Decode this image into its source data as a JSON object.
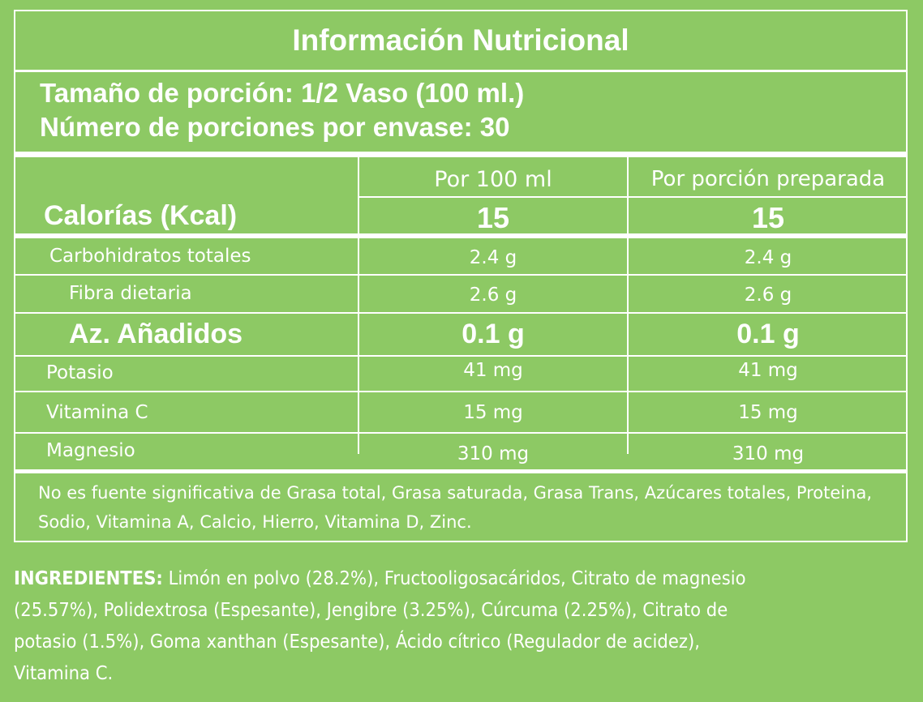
{
  "panel": {
    "title": "Información Nutricional",
    "serving_size": "Tamaño de porción: 1/2 Vaso (100 ml.)",
    "servings_per_container": "Número de porciones por envase: 30"
  },
  "table": {
    "col_headers": [
      "Por 100 ml",
      "Por porción preparada"
    ],
    "calories": {
      "label": "Calorías (Kcal)",
      "per_100ml": "15",
      "per_serving": "15"
    },
    "rows": [
      {
        "label": "Carbohidratos totales",
        "per_100ml": "2.4 g",
        "per_serving": "2.4 g"
      },
      {
        "label": "Fibra dietaria",
        "per_100ml": "2.6 g",
        "per_serving": "2.6 g"
      },
      {
        "label": "Az. Añadidos",
        "per_100ml": "0.1 g",
        "per_serving": "0.1 g"
      },
      {
        "label": "Potasio",
        "per_100ml": "41 mg",
        "per_serving": "41 mg"
      },
      {
        "label": "Vitamina C",
        "per_100ml": "15 mg",
        "per_serving": "15 mg"
      },
      {
        "label": "Magnesio",
        "per_100ml": "310 mg",
        "per_serving": "310 mg"
      }
    ]
  },
  "note": "No es fuente significativa de Grasa total, Grasa saturada, Grasa Trans, Azúcares totales, Proteina, Sodio, Vitamina A, Calcio, Hierro, Vitamina D, Zinc.",
  "ingredients": {
    "label": "INGREDIENTES:",
    "text": " Limón en polvo (28.2%), Fructooligosacáridos, Citrato de magnesio (25.57%), Polidextrosa (Espesante), Jengibre (3.25%), Cúrcuma (2.25%), Citrato de potasio (1.5%), Goma xanthan (Espesante), Ácido cítrico (Regulador de acidez), Vitamina C."
  },
  "colors": {
    "background": "#8dc964",
    "foreground": "#ffffff"
  }
}
